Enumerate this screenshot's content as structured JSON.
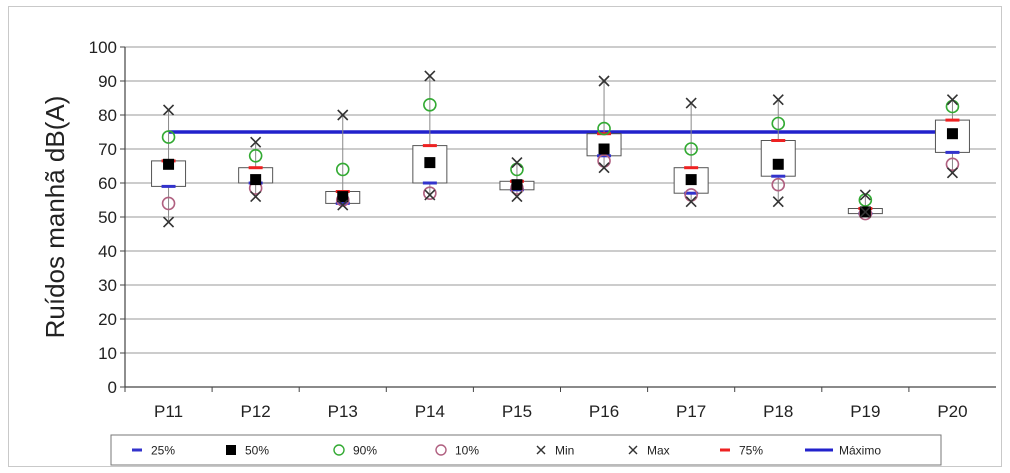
{
  "chart_data": {
    "type": "box",
    "title": "",
    "xlabel": "",
    "ylabel": "Ruídos manhã dB(A)",
    "ylim": [
      0,
      100
    ],
    "yticks": [
      0,
      10,
      20,
      30,
      40,
      50,
      60,
      70,
      80,
      90,
      100
    ],
    "grid": true,
    "legend_position": "bottom",
    "categories": [
      "P11",
      "P12",
      "P13",
      "P14",
      "P15",
      "P16",
      "P17",
      "P18",
      "P19",
      "P20"
    ],
    "series": [
      {
        "name": "25%",
        "values": [
          59,
          60,
          54,
          60,
          58,
          68,
          57,
          62,
          51,
          69
        ]
      },
      {
        "name": "50%",
        "values": [
          65.5,
          61,
          56,
          66,
          59.5,
          70,
          61,
          65.5,
          51.5,
          74.5
        ]
      },
      {
        "name": "90%",
        "values": [
          73.5,
          68,
          64,
          83,
          64,
          76,
          70,
          77.5,
          55,
          82.5
        ]
      },
      {
        "name": "10%",
        "values": [
          54,
          58.5,
          55,
          57,
          58.5,
          66.5,
          56.5,
          59.5,
          51,
          65.5
        ]
      },
      {
        "name": "Min",
        "values": [
          48.5,
          56,
          53.5,
          56.5,
          56,
          64.5,
          54.5,
          54.5,
          51.5,
          63
        ]
      },
      {
        "name": "Max",
        "values": [
          81.5,
          72,
          80,
          91.5,
          66,
          90,
          83.5,
          84.5,
          56.5,
          84.5
        ]
      },
      {
        "name": "75%",
        "values": [
          66.5,
          64.5,
          57.5,
          71,
          60.5,
          74.5,
          64.5,
          72.5,
          52.5,
          78.5
        ]
      },
      {
        "name": "Máximo",
        "values": [
          75,
          75,
          75,
          75,
          75,
          75,
          75,
          75,
          75,
          75
        ]
      }
    ],
    "colors": {
      "25%": "#3333cc",
      "50%": "#000000",
      "90%": "#33aa33",
      "10%": "#b06080",
      "Min": "#333333",
      "Max": "#333333",
      "75%": "#ee2222",
      "Máximo": "#2222cc"
    }
  },
  "legend": [
    {
      "label": "25%",
      "marker": "dash",
      "color": "#3333cc"
    },
    {
      "label": "50%",
      "marker": "square",
      "color": "#000000"
    },
    {
      "label": "90%",
      "marker": "circle",
      "color": "#33aa33"
    },
    {
      "label": "10%",
      "marker": "circle",
      "color": "#b06080"
    },
    {
      "label": "Min",
      "marker": "cross",
      "color": "#333333"
    },
    {
      "label": "Max",
      "marker": "cross",
      "color": "#333333"
    },
    {
      "label": "75%",
      "marker": "dash",
      "color": "#ee2222"
    },
    {
      "label": "Máximo",
      "marker": "line",
      "color": "#2222cc"
    }
  ]
}
